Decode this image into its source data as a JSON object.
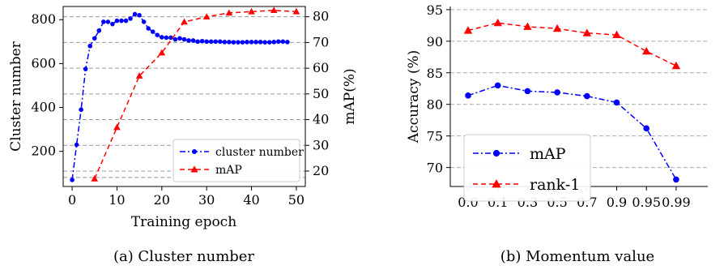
{
  "chart_data": [
    {
      "type": "line",
      "caption": "(a) Cluster number",
      "xlabel": "Training epoch",
      "ylabel": "Cluster number",
      "y2label": "mAP(%)",
      "xlim": [
        -2,
        52
      ],
      "ylim": [
        40,
        860
      ],
      "y2lim": [
        14,
        84
      ],
      "xticks": [
        0,
        10,
        20,
        30,
        40,
        50
      ],
      "yticks": [
        200,
        400,
        600,
        800
      ],
      "y2ticks": [
        20,
        30,
        40,
        50,
        60,
        70,
        80
      ],
      "grid": "horizontal dashed (right axis)",
      "legend": "bottom-right",
      "series": [
        {
          "name": "cluster number",
          "axis": "left",
          "color": "#0000ff",
          "style": "dash-dot",
          "marker": "circle",
          "x": [
            0,
            1,
            2,
            3,
            4,
            5,
            6,
            7,
            8,
            9,
            10,
            11,
            12,
            13,
            14,
            15,
            16,
            17,
            18,
            19,
            20,
            21,
            22,
            23,
            24,
            25,
            26,
            27,
            28,
            29,
            30,
            31,
            32,
            33,
            34,
            35,
            36,
            37,
            38,
            39,
            40,
            41,
            42,
            43,
            44,
            45,
            46,
            47,
            48
          ],
          "y": [
            70,
            230,
            390,
            575,
            680,
            715,
            750,
            790,
            790,
            780,
            795,
            795,
            795,
            805,
            825,
            820,
            790,
            760,
            745,
            730,
            720,
            718,
            718,
            710,
            715,
            710,
            705,
            705,
            700,
            702,
            700,
            700,
            700,
            700,
            698,
            698,
            697,
            697,
            697,
            698,
            698,
            698,
            698,
            697,
            697,
            698,
            700,
            700,
            698
          ]
        },
        {
          "name": "mAP",
          "axis": "right",
          "color": "#ff0000",
          "style": "dashed",
          "marker": "triangle",
          "x": [
            5,
            10,
            15,
            20,
            25,
            30,
            35,
            40,
            45,
            50
          ],
          "y": [
            17,
            37,
            57,
            66,
            78,
            80,
            81.5,
            82,
            82.5,
            82
          ]
        }
      ]
    },
    {
      "type": "line",
      "caption": "(b) Momentum value",
      "xlabel": "",
      "ylabel": "Accuracy (%)",
      "categories": [
        "0.0",
        "0.1",
        "0.3",
        "0.5",
        "0.7",
        "0.9",
        "0.95",
        "0.99"
      ],
      "ylim": [
        67,
        95.5
      ],
      "yticks": [
        70,
        75,
        80,
        85,
        90,
        95
      ],
      "grid": "horizontal dashed",
      "legend": "bottom-left",
      "series": [
        {
          "name": "mAP",
          "color": "#0000ff",
          "style": "dash-dot",
          "marker": "circle",
          "values": [
            81.4,
            83.0,
            82.1,
            81.9,
            81.3,
            80.3,
            76.2,
            68.1
          ]
        },
        {
          "name": "rank-1",
          "color": "#ff0000",
          "style": "dashed",
          "marker": "triangle",
          "values": [
            91.7,
            92.9,
            92.3,
            92.0,
            91.3,
            91.0,
            88.4,
            86.1
          ]
        }
      ]
    }
  ]
}
